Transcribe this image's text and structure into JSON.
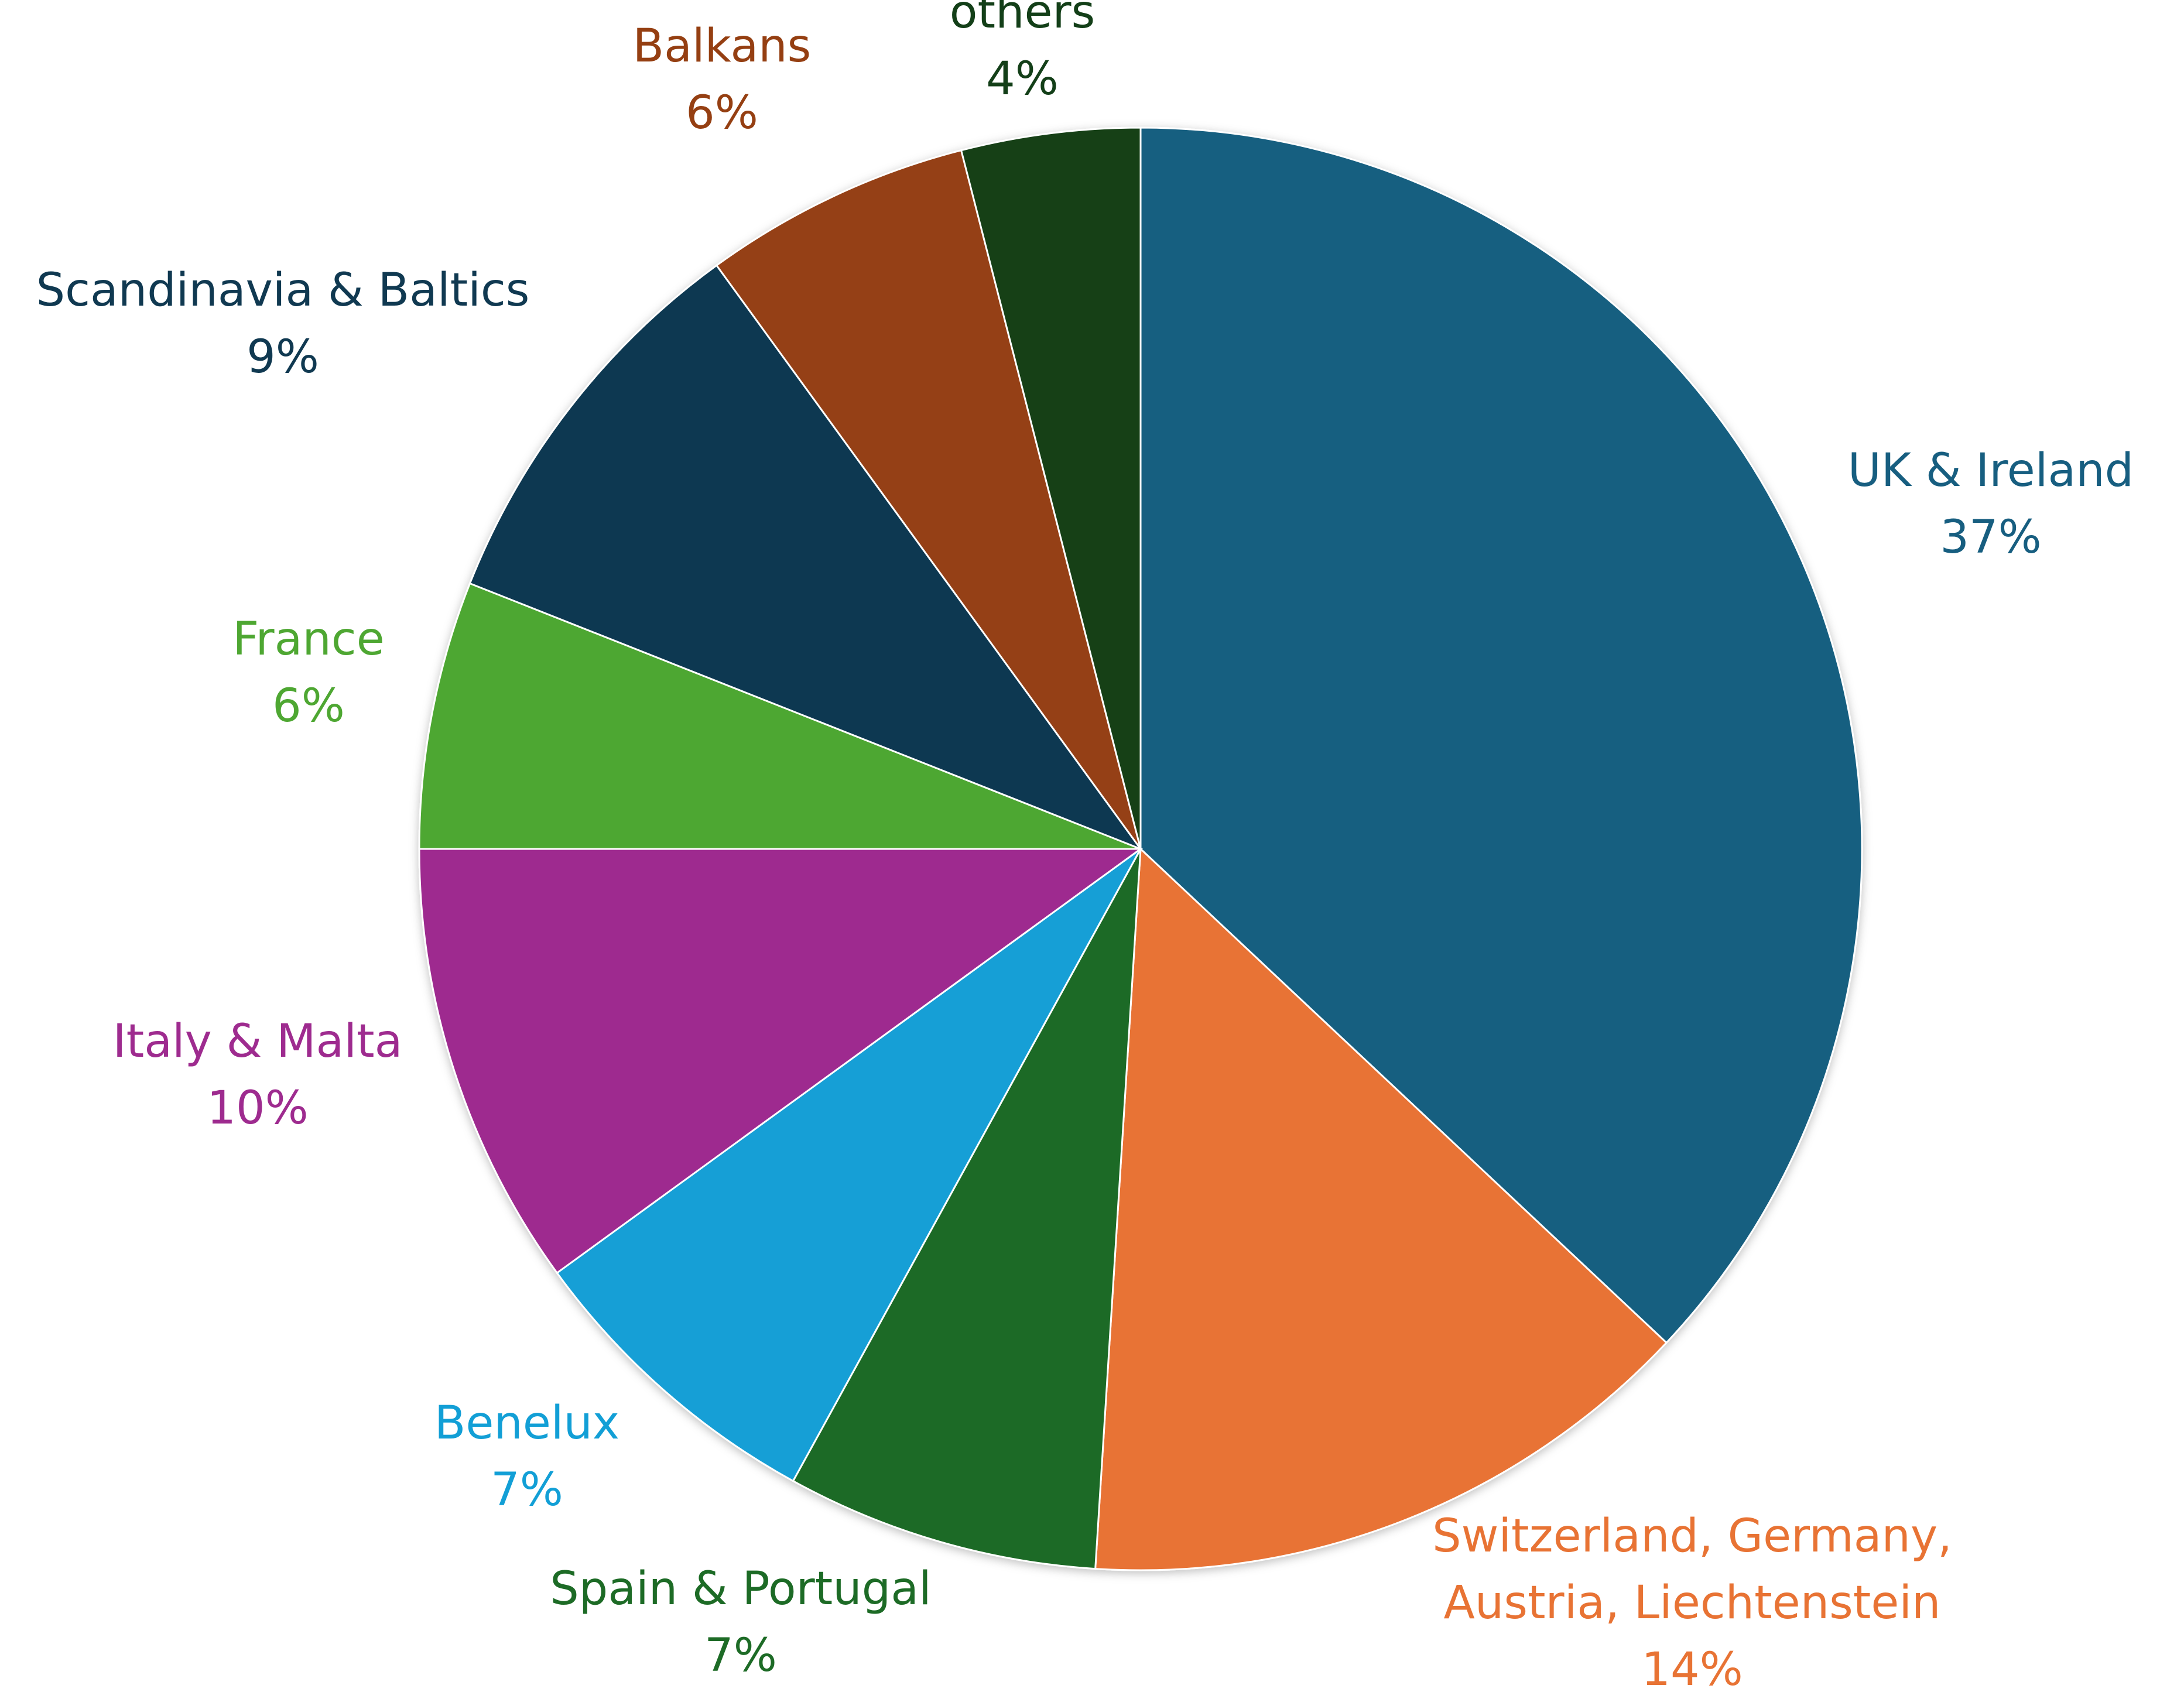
{
  "chart_data": {
    "type": "pie",
    "title": "",
    "start_angle_deg": 0,
    "direction": "clockwise",
    "slices": [
      {
        "label": [
          "UK & Ireland"
        ],
        "value": 37,
        "value_label": "37%",
        "color": "#175e80"
      },
      {
        "label": [
          "Switzerland, Germany,",
          "Austria, Liechtenstein"
        ],
        "value": 14,
        "value_label": "14%",
        "color": "#e87334"
      },
      {
        "label": [
          "Spain & Portugal"
        ],
        "value": 7,
        "value_label": "7%",
        "color": "#1d6b26"
      },
      {
        "label": [
          "Benelux"
        ],
        "value": 7,
        "value_label": "7%",
        "color": "#129fd6"
      },
      {
        "label": [
          "Italy & Malta"
        ],
        "value": 10,
        "value_label": "10%",
        "color": "#9e2b8f"
      },
      {
        "label": [
          "France"
        ],
        "value": 6,
        "value_label": "6%",
        "color": "#4ea732"
      },
      {
        "label": [
          "Scandinavia & Baltics"
        ],
        "value": 9,
        "value_label": "9%",
        "color": "#103951"
      },
      {
        "label": [
          "Balkans"
        ],
        "value": 6,
        "value_label": "6%",
        "color": "#953f12"
      },
      {
        "label": [
          "others"
        ],
        "value": 4,
        "value_label": "4%",
        "color": "#133f18"
      }
    ]
  }
}
